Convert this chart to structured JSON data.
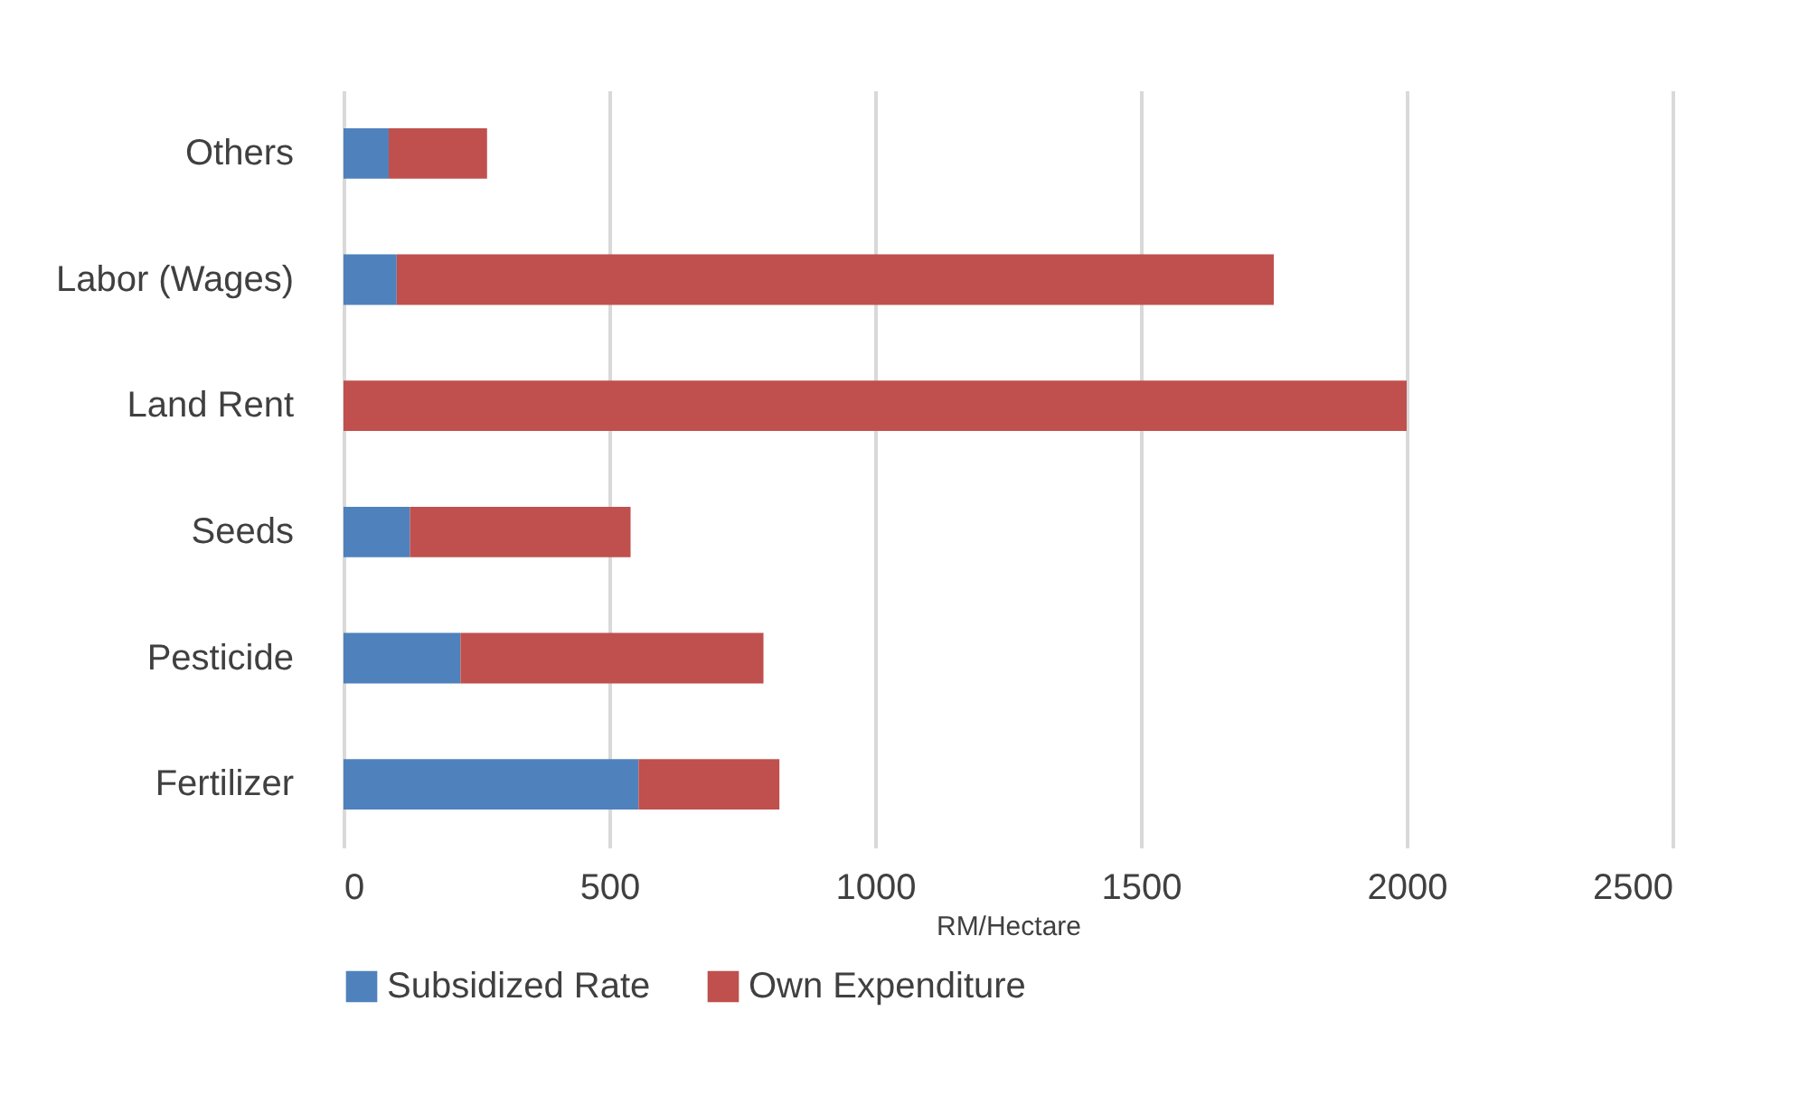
{
  "chart_data": {
    "type": "bar",
    "orientation": "horizontal",
    "stacked": true,
    "xlabel": "RM/Hectare",
    "categories": [
      "Others",
      "Labor (Wages)",
      "Land Rent",
      "Seeds",
      "Pesticide",
      "Fertilizer"
    ],
    "series": [
      {
        "name": "Subsidized Rate",
        "color": "#4f81bd",
        "values": [
          85,
          100,
          0,
          125,
          220,
          555
        ]
      },
      {
        "name": "Own Expenditure",
        "color": "#c0504d",
        "values": [
          185,
          1650,
          2000,
          415,
          570,
          265
        ]
      }
    ],
    "xlim": [
      0,
      2500
    ],
    "xticks": [
      0,
      500,
      1000,
      1500,
      2000,
      2500
    ],
    "grid": "x",
    "legend": "bottom"
  }
}
